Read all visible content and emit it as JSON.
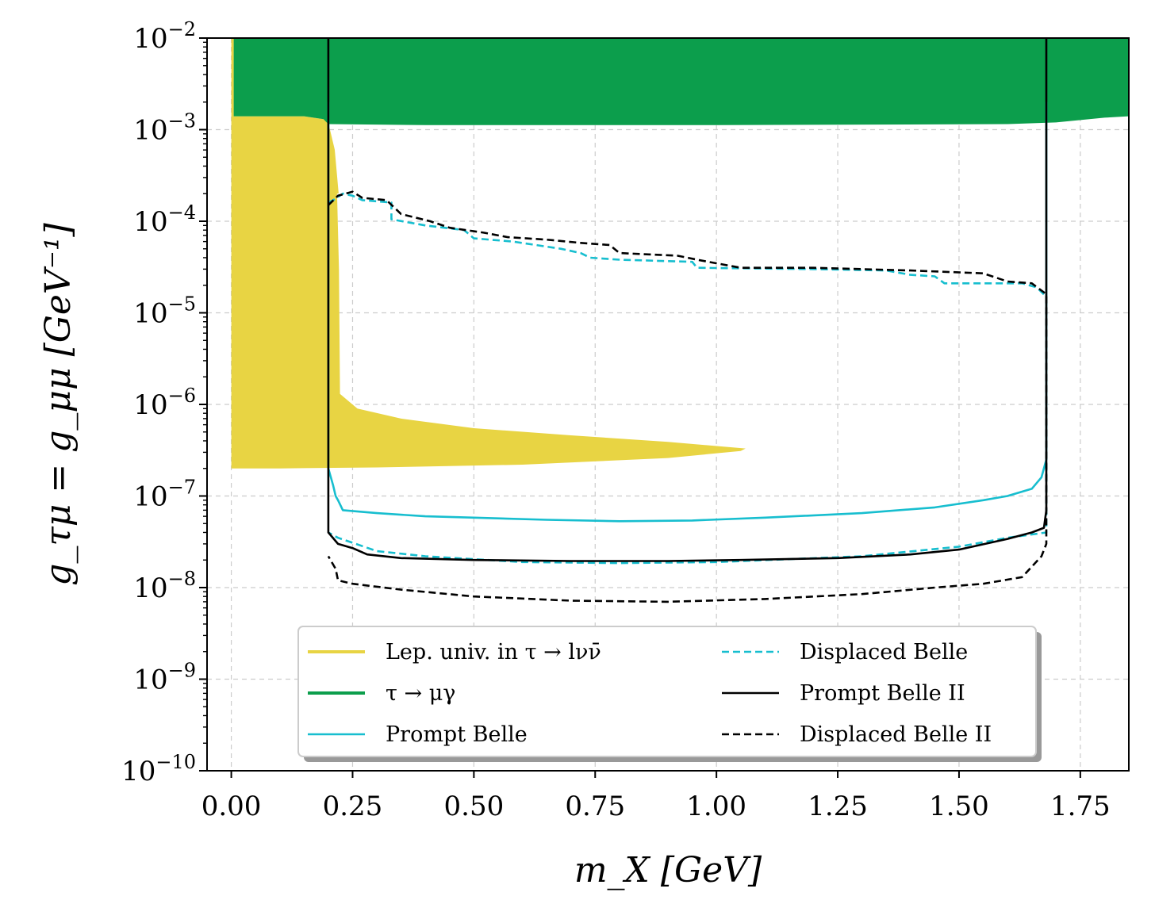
{
  "chart_data": {
    "type": "line",
    "xlabel": "m_X [GeV]",
    "ylabel": "g_τμ = g_μμ [GeV⁻¹]",
    "xlim": [
      -0.05,
      1.85
    ],
    "ylim": [
      1e-10,
      0.01
    ],
    "yscale": "log",
    "grid": true,
    "legend_placement": "lower-center",
    "x_ticks": [
      {
        "value": 0.0,
        "label": "0.00"
      },
      {
        "value": 0.25,
        "label": "0.25"
      },
      {
        "value": 0.5,
        "label": "0.50"
      },
      {
        "value": 0.75,
        "label": "0.75"
      },
      {
        "value": 1.0,
        "label": "1.00"
      },
      {
        "value": 1.25,
        "label": "1.25"
      },
      {
        "value": 1.5,
        "label": "1.50"
      },
      {
        "value": 1.75,
        "label": "1.75"
      }
    ],
    "y_ticks": [
      {
        "value": 1e-10,
        "base": "10",
        "exp": "−10"
      },
      {
        "value": 1e-09,
        "base": "10",
        "exp": "−9"
      },
      {
        "value": 1e-08,
        "base": "10",
        "exp": "−8"
      },
      {
        "value": 1e-07,
        "base": "10",
        "exp": "−7"
      },
      {
        "value": 1e-06,
        "base": "10",
        "exp": "−6"
      },
      {
        "value": 1e-05,
        "base": "10",
        "exp": "−5"
      },
      {
        "value": 0.0001,
        "base": "10",
        "exp": "−4"
      },
      {
        "value": 0.001,
        "base": "10",
        "exp": "−3"
      },
      {
        "value": 0.01,
        "base": "10",
        "exp": "−2"
      }
    ],
    "regions": [
      {
        "name": "Lep. univ. in τ → lνν̄",
        "color": "#e8d443",
        "polygon": [
          [
            0.0,
            2e-07
          ],
          [
            0.0,
            0.01
          ],
          [
            0.005,
            0.01
          ],
          [
            0.005,
            0.0014
          ],
          [
            0.15,
            0.0014
          ],
          [
            0.19,
            0.0013
          ],
          [
            0.2,
            0.001
          ],
          [
            0.21,
            0.0006
          ],
          [
            0.218,
            0.0002
          ],
          [
            0.222,
            3e-05
          ],
          [
            0.224,
            1.3e-06
          ],
          [
            0.26,
            9e-07
          ],
          [
            0.35,
            7e-07
          ],
          [
            0.5,
            5.5e-07
          ],
          [
            0.7,
            4.6e-07
          ],
          [
            0.9,
            3.9e-07
          ],
          [
            1.06,
            3.3e-07
          ],
          [
            1.05,
            3.1e-07
          ],
          [
            0.9,
            2.6e-07
          ],
          [
            0.6,
            2.2e-07
          ],
          [
            0.3,
            2.05e-07
          ],
          [
            0.1,
            2e-07
          ]
        ],
        "boundary_line": [
          [
            0.11,
            0.01
          ],
          [
            0.15,
            0.0035
          ],
          [
            0.19,
            0.0015
          ],
          [
            0.2,
            0.001
          ],
          [
            0.21,
            0.0006
          ],
          [
            0.218,
            0.0002
          ]
        ]
      },
      {
        "name": "τ → μγ",
        "color": "#0c9e4c",
        "polygon": [
          [
            0.005,
            0.01
          ],
          [
            1.85,
            0.01
          ],
          [
            1.85,
            0.0014
          ],
          [
            1.8,
            0.00135
          ],
          [
            1.7,
            0.0012
          ],
          [
            1.6,
            0.00115
          ],
          [
            1.0,
            0.00112
          ],
          [
            0.4,
            0.00112
          ],
          [
            0.2,
            0.00115
          ],
          [
            0.19,
            0.0013
          ],
          [
            0.15,
            0.0014
          ],
          [
            0.005,
            0.0014
          ]
        ]
      }
    ],
    "series": [
      {
        "name": "Prompt Belle",
        "color": "#17becf",
        "dash": "solid",
        "points": [
          [
            0.2,
            0.002
          ],
          [
            0.2,
            2e-07
          ],
          [
            0.21,
            1.3e-07
          ],
          [
            0.215,
            1e-07
          ],
          [
            0.22,
            9e-08
          ],
          [
            0.23,
            7e-08
          ],
          [
            0.3,
            6.5e-08
          ],
          [
            0.4,
            6e-08
          ],
          [
            0.5,
            5.8e-08
          ],
          [
            0.65,
            5.5e-08
          ],
          [
            0.8,
            5.3e-08
          ],
          [
            0.95,
            5.4e-08
          ],
          [
            1.1,
            5.8e-08
          ],
          [
            1.3,
            6.5e-08
          ],
          [
            1.45,
            7.5e-08
          ],
          [
            1.55,
            9e-08
          ],
          [
            1.6,
            1e-07
          ],
          [
            1.65,
            1.2e-07
          ],
          [
            1.67,
            1.6e-07
          ],
          [
            1.68,
            2.5e-07
          ],
          [
            1.68,
            0.002
          ]
        ]
      },
      {
        "name": "Displaced Belle",
        "color": "#17becf",
        "dash": "dashed",
        "points": [
          [
            0.2,
            0.00016
          ],
          [
            0.21,
            0.00017
          ],
          [
            0.23,
            0.0002
          ],
          [
            0.25,
            0.00019
          ],
          [
            0.27,
            0.00017
          ],
          [
            0.33,
            0.00016
          ],
          [
            0.33,
            0.000105
          ],
          [
            0.4,
            9e-05
          ],
          [
            0.48,
            8e-05
          ],
          [
            0.5,
            6.5e-05
          ],
          [
            0.58,
            6e-05
          ],
          [
            0.68,
            5e-05
          ],
          [
            0.72,
            4.5e-05
          ],
          [
            0.74,
            4e-05
          ],
          [
            0.8,
            3.8e-05
          ],
          [
            0.95,
            3.6e-05
          ],
          [
            0.96,
            3.1e-05
          ],
          [
            1.2,
            3e-05
          ],
          [
            1.35,
            2.9e-05
          ],
          [
            1.4,
            2.6e-05
          ],
          [
            1.45,
            2.5e-05
          ],
          [
            1.47,
            2.1e-05
          ],
          [
            1.63,
            2.1e-05
          ],
          [
            1.66,
            1.9e-05
          ],
          [
            1.68,
            1.5e-05
          ],
          [
            1.68,
            4e-08
          ],
          [
            1.6,
            3.5e-08
          ],
          [
            1.5,
            2.8e-08
          ],
          [
            1.3,
            2.2e-08
          ],
          [
            1.0,
            1.9e-08
          ],
          [
            0.8,
            1.85e-08
          ],
          [
            0.6,
            1.9e-08
          ],
          [
            0.4,
            2.2e-08
          ],
          [
            0.3,
            2.5e-08
          ],
          [
            0.22,
            3.5e-08
          ],
          [
            0.2,
            4e-08
          ]
        ]
      },
      {
        "name": "Prompt Belle II",
        "color": "#000000",
        "dash": "solid",
        "points": [
          [
            0.2,
            0.01
          ],
          [
            0.2,
            4e-08
          ],
          [
            0.22,
            3e-08
          ],
          [
            0.25,
            2.7e-08
          ],
          [
            0.28,
            2.3e-08
          ],
          [
            0.35,
            2.1e-08
          ],
          [
            0.5,
            2e-08
          ],
          [
            0.7,
            1.95e-08
          ],
          [
            0.9,
            1.95e-08
          ],
          [
            1.05,
            2e-08
          ],
          [
            1.25,
            2.1e-08
          ],
          [
            1.4,
            2.3e-08
          ],
          [
            1.5,
            2.6e-08
          ],
          [
            1.6,
            3.4e-08
          ],
          [
            1.65,
            4e-08
          ],
          [
            1.675,
            4.5e-08
          ],
          [
            1.68,
            7e-08
          ],
          [
            1.68,
            0.01
          ]
        ]
      },
      {
        "name": "Displaced Belle II",
        "color": "#000000",
        "dash": "dashed",
        "points": [
          [
            0.2,
            0.00015
          ],
          [
            0.22,
            0.00019
          ],
          [
            0.25,
            0.00021
          ],
          [
            0.27,
            0.00018
          ],
          [
            0.32,
            0.00017
          ],
          [
            0.35,
            0.00012
          ],
          [
            0.41,
            0.0001
          ],
          [
            0.45,
            8.5e-05
          ],
          [
            0.52,
            7.5e-05
          ],
          [
            0.57,
            6.7e-05
          ],
          [
            0.65,
            6.3e-05
          ],
          [
            0.72,
            5.8e-05
          ],
          [
            0.78,
            5.5e-05
          ],
          [
            0.8,
            4.5e-05
          ],
          [
            0.92,
            4.2e-05
          ],
          [
            0.96,
            3.8e-05
          ],
          [
            1.05,
            3.1e-05
          ],
          [
            1.2,
            3.1e-05
          ],
          [
            1.4,
            2.9e-05
          ],
          [
            1.55,
            2.7e-05
          ],
          [
            1.6,
            2.2e-05
          ],
          [
            1.65,
            2.1e-05
          ],
          [
            1.68,
            1.6e-05
          ],
          [
            1.68,
            3e-08
          ],
          [
            1.67,
            2.2e-08
          ],
          [
            1.63,
            1.3e-08
          ],
          [
            1.55,
            1.1e-08
          ],
          [
            1.45,
            1e-08
          ],
          [
            1.3,
            8.5e-09
          ],
          [
            1.1,
            7.5e-09
          ],
          [
            0.9,
            7e-09
          ],
          [
            0.7,
            7.2e-09
          ],
          [
            0.5,
            8e-09
          ],
          [
            0.35,
            9.5e-09
          ],
          [
            0.25,
            1.1e-08
          ],
          [
            0.22,
            1.2e-08
          ],
          [
            0.215,
            1.6e-08
          ],
          [
            0.2,
            2.2e-08
          ]
        ]
      }
    ],
    "legend": [
      {
        "label": "Lep. univ. in τ → lνν̄",
        "color": "#e8d443",
        "dash": "solid",
        "width": 4
      },
      {
        "label": "τ → μγ",
        "color": "#0c9e4c",
        "dash": "solid",
        "width": 4
      },
      {
        "label": "Prompt Belle",
        "color": "#17becf",
        "dash": "solid",
        "width": 2.5
      },
      {
        "label": "Displaced Belle",
        "color": "#17becf",
        "dash": "dashed",
        "width": 2.5
      },
      {
        "label": "Prompt Belle II",
        "color": "#000000",
        "dash": "solid",
        "width": 2.5
      },
      {
        "label": "Displaced Belle II",
        "color": "#000000",
        "dash": "dashed",
        "width": 2.5
      }
    ]
  }
}
